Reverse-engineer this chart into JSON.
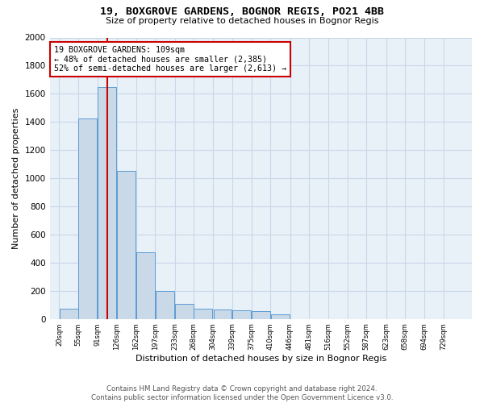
{
  "title": "19, BOXGROVE GARDENS, BOGNOR REGIS, PO21 4BB",
  "subtitle": "Size of property relative to detached houses in Bognor Regis",
  "xlabel": "Distribution of detached houses by size in Bognor Regis",
  "ylabel": "Number of detached properties",
  "footer1": "Contains HM Land Registry data © Crown copyright and database right 2024.",
  "footer2": "Contains public sector information licensed under the Open Government Licence v3.0.",
  "bins": [
    20,
    55,
    91,
    126,
    162,
    197,
    233,
    268,
    304,
    339,
    375,
    410,
    446,
    481,
    516,
    552,
    587,
    623,
    658,
    694,
    729
  ],
  "bar_heights": [
    75,
    1425,
    1650,
    1050,
    475,
    200,
    110,
    75,
    65,
    60,
    55,
    30,
    0,
    0,
    0,
    0,
    0,
    0,
    0,
    0
  ],
  "bar_color": "#c9d9e8",
  "bar_edge_color": "#5b9bd5",
  "grid_color": "#c8d8e8",
  "bg_color": "#e8f0f8",
  "property_size": 109,
  "vline_color": "#cc0000",
  "annotation_line1": "19 BOXGROVE GARDENS: 109sqm",
  "annotation_line2": "← 48% of detached houses are smaller (2,385)",
  "annotation_line3": "52% of semi-detached houses are larger (2,613) →",
  "annotation_box_color": "#cc0000",
  "ylim": [
    0,
    2000
  ],
  "yticks": [
    0,
    200,
    400,
    600,
    800,
    1000,
    1200,
    1400,
    1600,
    1800,
    2000
  ]
}
